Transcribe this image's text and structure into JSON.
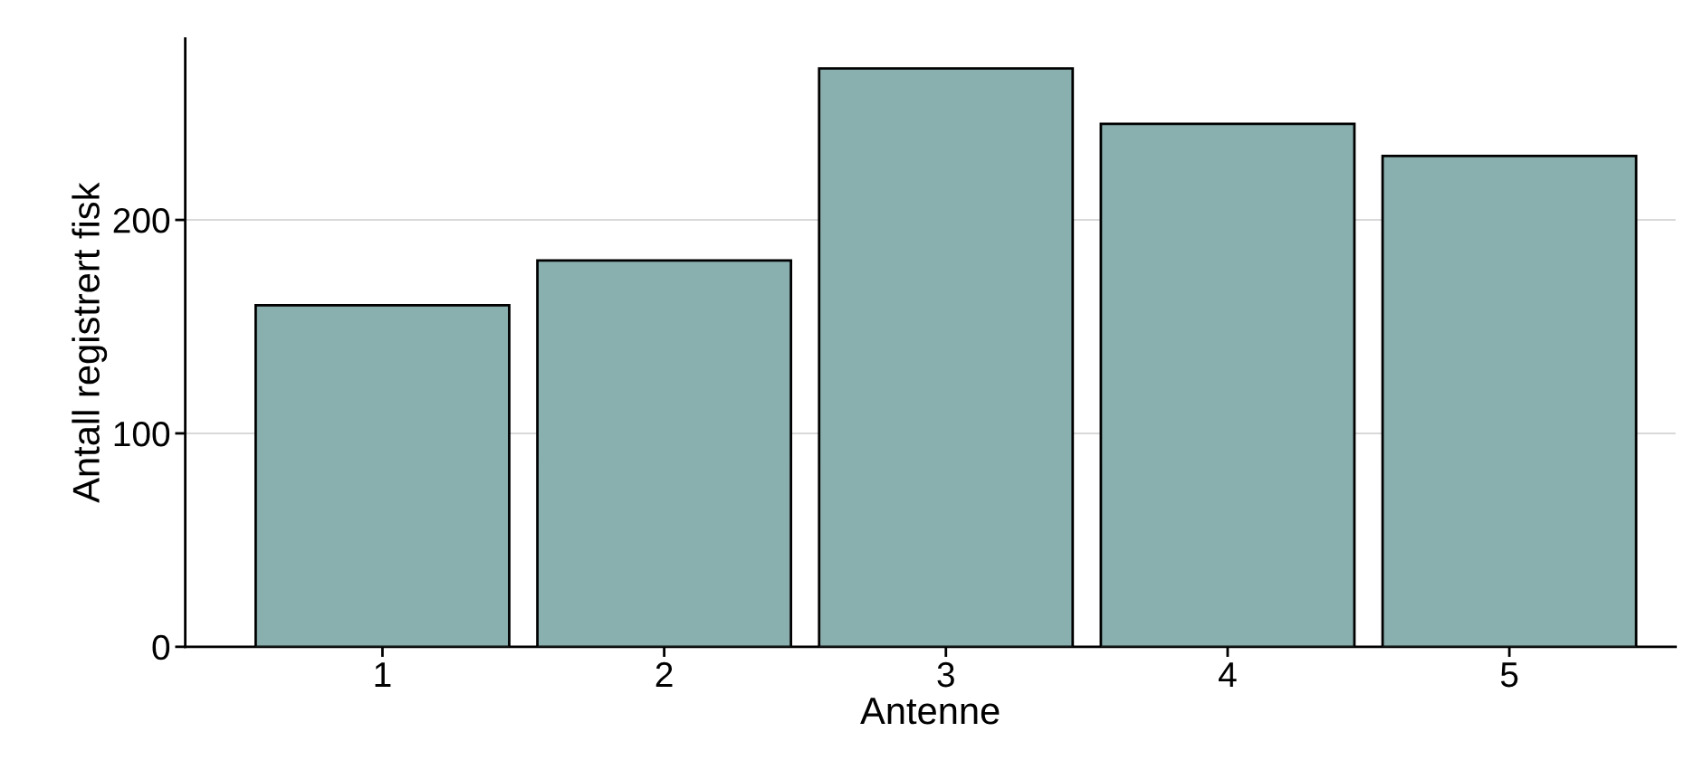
{
  "chart_data": {
    "type": "bar",
    "xlabel": "Antenne",
    "ylabel": "Antall registrert fisk",
    "categories": [
      "1",
      "2",
      "3",
      "4",
      "5"
    ],
    "values": [
      160,
      181,
      271,
      245,
      230
    ],
    "color": "#8aafaf",
    "ylim": [
      0,
      285
    ],
    "yticks": [
      0,
      100,
      200
    ],
    "grid": "y",
    "legend": false
  }
}
